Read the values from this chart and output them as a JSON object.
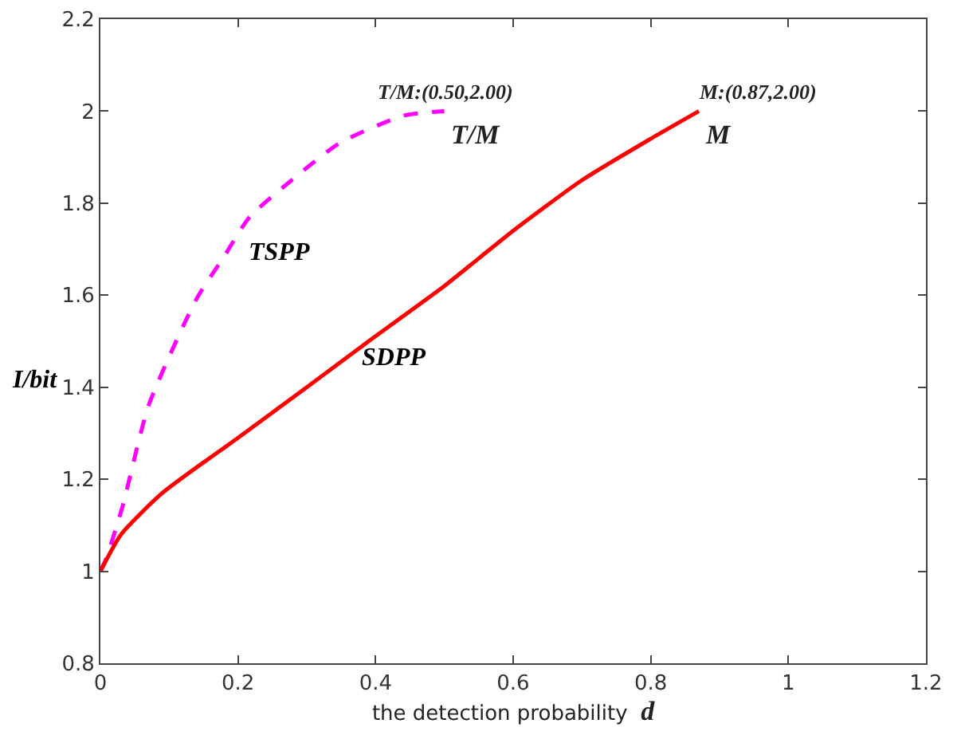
{
  "chart_data": {
    "type": "line",
    "xlabel": "the detection probability d",
    "ylabel": "I/bit",
    "xlim": [
      0,
      1.2
    ],
    "xticks": [
      0,
      0.2,
      0.4,
      0.6,
      0.8,
      1,
      1.2
    ],
    "ylim": [
      0.8,
      2.2
    ],
    "yticks": [
      0.8,
      1,
      1.2,
      1.4,
      1.6,
      1.8,
      2,
      2.2
    ],
    "grid": false,
    "legend": false,
    "marker": "none",
    "series": [
      {
        "name": "TSPP",
        "color": "#ff00ff",
        "line_style": "dashed",
        "x": [
          0,
          0.009,
          0.032,
          0.07,
          0.139,
          0.178,
          0.217,
          0.278,
          0.347,
          0.44,
          0.5
        ],
        "values": [
          1,
          1.03,
          1.14,
          1.36,
          1.59,
          1.68,
          1.77,
          1.85,
          1.93,
          1.99,
          2.0
        ]
      },
      {
        "name": "SDPP",
        "color": "#ff0000",
        "line_style": "solid",
        "x": [
          0,
          0.03,
          0.09,
          0.2,
          0.3,
          0.39,
          0.5,
          0.55,
          0.6,
          0.7,
          0.8,
          0.87
        ],
        "values": [
          1,
          1.08,
          1.17,
          1.29,
          1.4,
          1.5,
          1.62,
          1.68,
          1.74,
          1.85,
          1.94,
          2.0
        ]
      }
    ],
    "annotations": [
      "T/M:(0.50,2.00)",
      "T/M",
      "M:(0.87,2.00)",
      "M"
    ]
  }
}
